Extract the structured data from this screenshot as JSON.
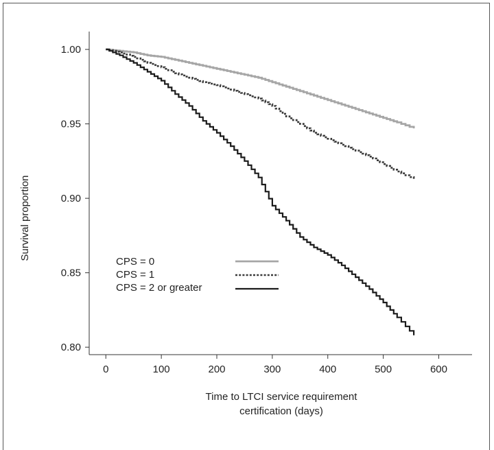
{
  "chart_data": {
    "type": "line",
    "title": "",
    "xlabel": [
      "Time to LTCI service requirement",
      "certification (days)"
    ],
    "ylabel": "Survival proportion",
    "xlim": [
      -30,
      660
    ],
    "ylim": [
      0.795,
      1.012
    ],
    "xticks": [
      "0",
      "100",
      "200",
      "300",
      "400",
      "500",
      "600"
    ],
    "yticks": [
      "0.80",
      "0.85",
      "0.90",
      "0.95",
      "1.00"
    ],
    "grid": false,
    "legend_position": "lower-left",
    "series": [
      {
        "name": "CPS = 0",
        "style": "solid",
        "color": "#a6a6a6",
        "x": [
          0,
          25,
          50,
          75,
          100,
          125,
          150,
          175,
          200,
          225,
          250,
          275,
          300,
          325,
          350,
          375,
          400,
          425,
          450,
          475,
          500,
          525,
          555
        ],
        "y": [
          1.0,
          0.999,
          0.998,
          0.996,
          0.995,
          0.993,
          0.991,
          0.989,
          0.987,
          0.985,
          0.983,
          0.981,
          0.978,
          0.975,
          0.972,
          0.969,
          0.966,
          0.963,
          0.96,
          0.957,
          0.954,
          0.951,
          0.947
        ]
      },
      {
        "name": "CPS = 1",
        "style": "dotted",
        "color": "#3a3a3a",
        "x": [
          0,
          25,
          50,
          75,
          100,
          125,
          150,
          175,
          200,
          225,
          250,
          275,
          300,
          325,
          350,
          375,
          400,
          425,
          450,
          475,
          500,
          525,
          555
        ],
        "y": [
          1.0,
          0.998,
          0.995,
          0.991,
          0.988,
          0.984,
          0.981,
          0.978,
          0.976,
          0.973,
          0.97,
          0.967,
          0.962,
          0.955,
          0.95,
          0.944,
          0.94,
          0.936,
          0.932,
          0.928,
          0.923,
          0.918,
          0.913
        ]
      },
      {
        "name": "CPS = 2 or greater",
        "style": "solid",
        "color": "#1a1a1a",
        "x": [
          0,
          25,
          50,
          75,
          100,
          125,
          150,
          175,
          200,
          225,
          250,
          275,
          300,
          325,
          350,
          375,
          400,
          425,
          450,
          475,
          500,
          525,
          555
        ],
        "y": [
          1.0,
          0.996,
          0.991,
          0.985,
          0.979,
          0.97,
          0.962,
          0.952,
          0.944,
          0.935,
          0.925,
          0.914,
          0.895,
          0.885,
          0.874,
          0.867,
          0.862,
          0.855,
          0.847,
          0.839,
          0.83,
          0.82,
          0.808
        ]
      }
    ]
  }
}
